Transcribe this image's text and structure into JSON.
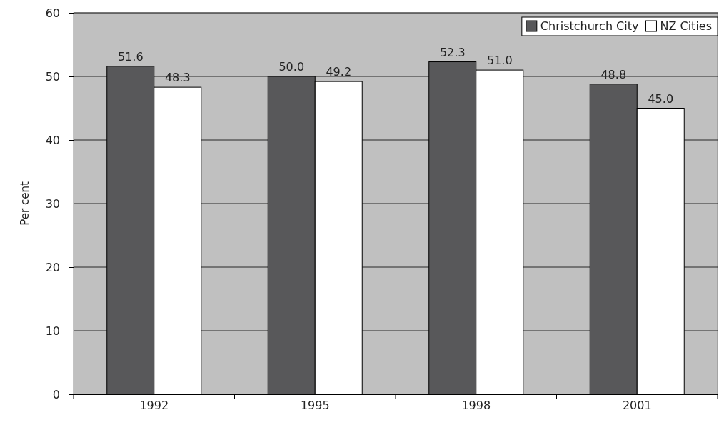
{
  "chart_data": {
    "type": "bar",
    "ylabel": "Per cent",
    "categories": [
      "1992",
      "1995",
      "1998",
      "2001"
    ],
    "series": [
      {
        "name": "Christchurch City",
        "color": "#58585a",
        "values": [
          51.6,
          50.0,
          52.3,
          48.8
        ],
        "value_labels": [
          "51.6",
          "50.0",
          "52.3",
          "48.8"
        ]
      },
      {
        "name": "NZ Cities",
        "color": "#ffffff",
        "values": [
          48.3,
          49.2,
          51.0,
          45.0
        ],
        "value_labels": [
          "48.3",
          "49.2",
          "51.0",
          "45.0"
        ]
      }
    ],
    "ylim": [
      0,
      60
    ],
    "yticks": [
      0,
      10,
      20,
      30,
      40,
      50,
      60
    ],
    "grid": "y",
    "legend": "top right"
  }
}
